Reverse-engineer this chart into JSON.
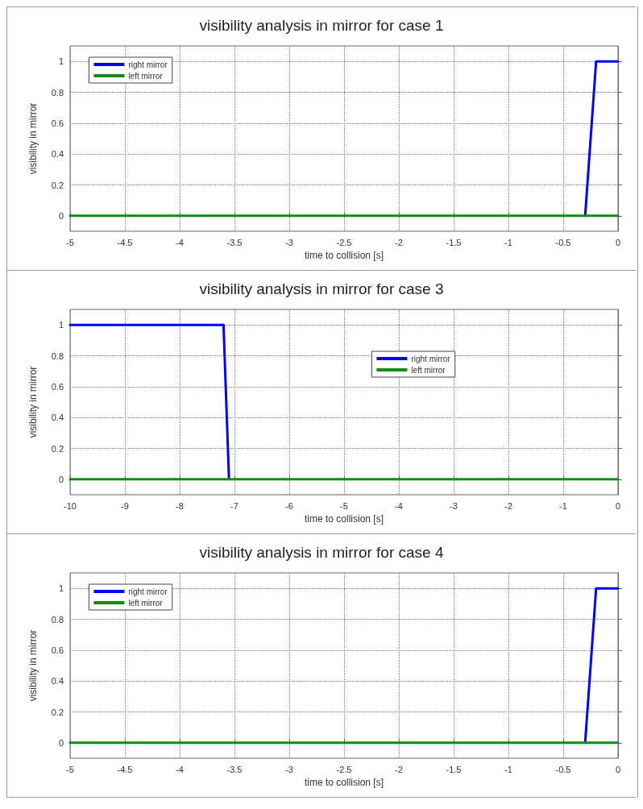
{
  "chart_data": [
    {
      "type": "line",
      "title": "visibility analysis in mirror for case 1",
      "xlabel": "time to collision [s]",
      "ylabel": "visibility in mirror",
      "xlim": [
        -5,
        0
      ],
      "xticks": [
        -5,
        -4.5,
        -4,
        -3.5,
        -3,
        -2.5,
        -2,
        -1.5,
        -1,
        -0.5,
        0
      ],
      "ylim": [
        -0.1,
        1.1
      ],
      "yticks": [
        0,
        0.2,
        0.4,
        0.6,
        0.8,
        1
      ],
      "grid": true,
      "legend": "top left",
      "marker": "none",
      "line_style": "solid",
      "series": [
        {
          "name": "right mirror",
          "color": "#0000ff",
          "x": [
            -0.3,
            -0.2,
            0
          ],
          "values": [
            0,
            1,
            1
          ]
        },
        {
          "name": "left mirror",
          "color": "#138a13",
          "x": [
            -5,
            0
          ],
          "values": [
            0,
            0
          ]
        }
      ]
    },
    {
      "type": "line",
      "title": "visibility analysis in mirror for case 3",
      "xlabel": "time to collision [s]",
      "ylabel": "visibility in mirror",
      "xlim": [
        -10,
        0
      ],
      "xticks": [
        -10,
        -9,
        -8,
        -7,
        -6,
        -5,
        -4,
        -3,
        -2,
        -1,
        0
      ],
      "ylim": [
        -0.1,
        1.1
      ],
      "yticks": [
        0,
        0.2,
        0.4,
        0.6,
        0.8,
        1
      ],
      "grid": true,
      "legend": "top right",
      "marker": "none",
      "line_style": "solid",
      "series": [
        {
          "name": "right mirror",
          "color": "#0000ff",
          "x": [
            -10,
            -7.2,
            -7.1
          ],
          "values": [
            1,
            1,
            0
          ]
        },
        {
          "name": "left mirror",
          "color": "#138a13",
          "x": [
            -10,
            0
          ],
          "values": [
            0,
            0
          ]
        }
      ]
    },
    {
      "type": "line",
      "title": "visibility analysis in mirror for case 4",
      "xlabel": "time to collision [s]",
      "ylabel": "visibility in mirror",
      "xlim": [
        -5,
        0
      ],
      "xticks": [
        -5,
        -4.5,
        -4,
        -3.5,
        -3,
        -2.5,
        -2,
        -1.5,
        -1,
        -0.5,
        0
      ],
      "ylim": [
        -0.1,
        1.1
      ],
      "yticks": [
        0,
        0.2,
        0.4,
        0.6,
        0.8,
        1
      ],
      "grid": true,
      "legend": "top left",
      "marker": "none",
      "line_style": "solid",
      "series": [
        {
          "name": "right mirror",
          "color": "#0000ff",
          "x": [
            -0.3,
            -0.2,
            0
          ],
          "values": [
            0,
            1,
            1
          ]
        },
        {
          "name": "left mirror",
          "color": "#138a13",
          "x": [
            -5,
            0
          ],
          "values": [
            0,
            0
          ]
        }
      ]
    }
  ]
}
